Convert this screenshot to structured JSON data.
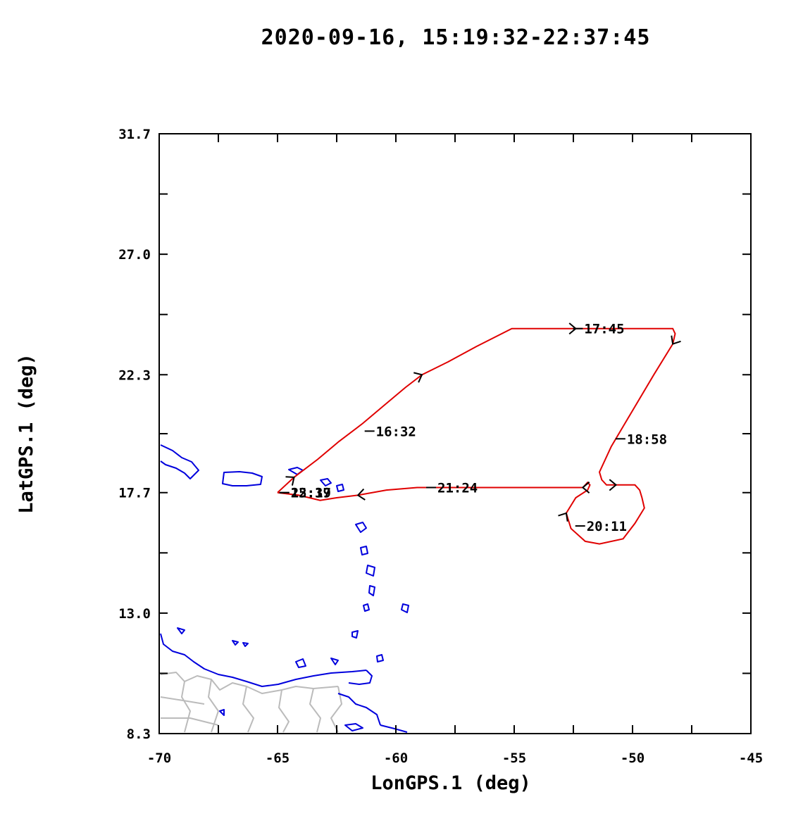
{
  "chart_data": {
    "type": "line",
    "title": "2020-09-16, 15:19:32-22:37:45",
    "xlabel": "LonGPS.1 (deg)",
    "ylabel": "LatGPS.1 (deg)",
    "xlim": [
      -70,
      -45
    ],
    "ylim": [
      8.3,
      31.7
    ],
    "x_ticks": [
      -70,
      -65,
      -60,
      -55,
      -50,
      -45
    ],
    "x_tick_labels": [
      "-70",
      "-65",
      "-60",
      "-55",
      "-50",
      "-45"
    ],
    "y_ticks": [
      8.3,
      13.0,
      17.7,
      22.3,
      27.0,
      31.7
    ],
    "y_tick_labels": [
      "8.3",
      "13.0",
      "17.7",
      "22.3",
      "27.0",
      "31.7"
    ],
    "grid": false,
    "colors": {
      "track": "#e00000",
      "coastline": "#0000dd",
      "borders": "#bbbbbb",
      "axes": "#000000"
    },
    "series": [
      {
        "x": [
          -65.0,
          -64.3,
          -63.3,
          -62.4,
          -61.4,
          -60.5,
          -59.6,
          -58.9,
          -57.8,
          -56.6,
          -55.1,
          -53.8,
          -52.4,
          -51.0,
          -49.5,
          -48.3,
          -48.2,
          -48.3,
          -49.1,
          -50.0,
          -50.9,
          -51.4,
          -51.3,
          -51.1,
          -50.7,
          -49.9,
          -49.7,
          -49.6,
          -49.5,
          -49.9,
          -50.4,
          -51.4,
          -52.0,
          -52.6,
          -52.8,
          -52.4,
          -51.9,
          -51.8,
          -51.9,
          -52.1,
          -53.1,
          -55.0,
          -57.4,
          -59.1,
          -60.4,
          -61.6,
          -62.5,
          -63.2,
          -64.1,
          -65.0
        ],
        "y": [
          17.7,
          18.3,
          19.0,
          19.7,
          20.4,
          21.1,
          21.8,
          22.3,
          22.8,
          23.4,
          24.1,
          24.1,
          24.1,
          24.1,
          24.1,
          24.1,
          23.9,
          23.5,
          22.3,
          20.9,
          19.5,
          18.5,
          18.2,
          18.0,
          18.0,
          18.0,
          17.8,
          17.5,
          17.1,
          16.5,
          15.9,
          15.7,
          15.8,
          16.3,
          16.9,
          17.5,
          17.8,
          18.0,
          18.1,
          17.9,
          17.9,
          17.9,
          17.9,
          17.9,
          17.8,
          17.6,
          17.5,
          17.4,
          17.6,
          17.7
        ]
      }
    ],
    "time_annotations": [
      {
        "label": "16:32",
        "x": -61.2,
        "y": 20.1
      },
      {
        "label": "17:45",
        "x": -52.4,
        "y": 24.1
      },
      {
        "label": "18:58",
        "x": -50.6,
        "y": 19.8
      },
      {
        "label": "20:11",
        "x": -52.3,
        "y": 16.4
      },
      {
        "label": "21:24",
        "x": -58.6,
        "y": 17.9
      },
      {
        "label": "22:37",
        "x": -64.8,
        "y": 17.7
      },
      {
        "label": "15:19",
        "x": -64.8,
        "y": 17.7
      }
    ]
  }
}
